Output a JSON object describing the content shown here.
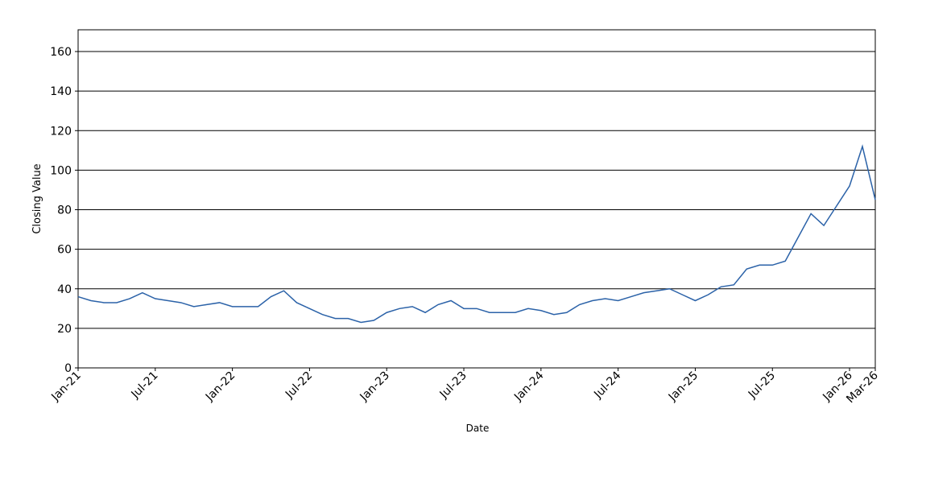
{
  "chart_data": {
    "type": "line",
    "x_label": "Date",
    "y_label": "Closing Value",
    "x": [
      "2021-01",
      "2021-02",
      "2021-03",
      "2021-04",
      "2021-05",
      "2021-06",
      "2021-07",
      "2021-08",
      "2021-09",
      "2021-10",
      "2021-11",
      "2021-12",
      "2022-01",
      "2022-02",
      "2022-03",
      "2022-04",
      "2022-05",
      "2022-06",
      "2022-07",
      "2022-08",
      "2022-09",
      "2022-10",
      "2022-11",
      "2022-12",
      "2023-01",
      "2023-02",
      "2023-03",
      "2023-04",
      "2023-05",
      "2023-06",
      "2023-07",
      "2023-08",
      "2023-09",
      "2023-10",
      "2023-11",
      "2023-12",
      "2024-01",
      "2024-02",
      "2024-03",
      "2024-04",
      "2024-05",
      "2024-06",
      "2024-07",
      "2024-08",
      "2024-09",
      "2024-10",
      "2024-11",
      "2024-12",
      "2025-01",
      "2025-02",
      "2025-03",
      "2025-04",
      "2025-05",
      "2025-06",
      "2025-07",
      "2025-08",
      "2025-09",
      "2025-10",
      "2025-11",
      "2025-12",
      "2026-01",
      "2026-02",
      "2026-03"
    ],
    "series": [
      {
        "color": "#2b62a8",
        "values": [
          36,
          34,
          33,
          33,
          35,
          38,
          35,
          34,
          33,
          31,
          32,
          33,
          31,
          31,
          31,
          36,
          39,
          33,
          30,
          27,
          25,
          25,
          23,
          24,
          28,
          30,
          31,
          28,
          32,
          34,
          30,
          30,
          28,
          28,
          28,
          30,
          29,
          27,
          28,
          32,
          34,
          35,
          34,
          36,
          38,
          39,
          40,
          37,
          34,
          37,
          41,
          42,
          50,
          52,
          52,
          54,
          66,
          78,
          72,
          82,
          92,
          112,
          85
        ]
      }
    ],
    "xticks": [
      {
        "value": "2021-01",
        "label": "Jan-21"
      },
      {
        "value": "2021-07",
        "label": "Jul-21"
      },
      {
        "value": "2022-01",
        "label": "Jan-22"
      },
      {
        "value": "2022-07",
        "label": "Jul-22"
      },
      {
        "value": "2023-01",
        "label": "Jan-23"
      },
      {
        "value": "2023-07",
        "label": "Jul-23"
      },
      {
        "value": "2024-01",
        "label": "Jan-24"
      },
      {
        "value": "2024-07",
        "label": "Jul-24"
      },
      {
        "value": "2025-01",
        "label": "Jan-25"
      },
      {
        "value": "2025-07",
        "label": "Jul-25"
      },
      {
        "value": "2026-01",
        "label": "Jan-26"
      },
      {
        "value": "2026-03",
        "label": "Mar-26"
      }
    ],
    "xlim": [
      "2021-01",
      "2026-03"
    ],
    "ylim": [
      0,
      171
    ],
    "yticks": [
      0,
      20,
      40,
      60,
      80,
      100,
      120,
      140,
      160
    ],
    "grid": true
  }
}
